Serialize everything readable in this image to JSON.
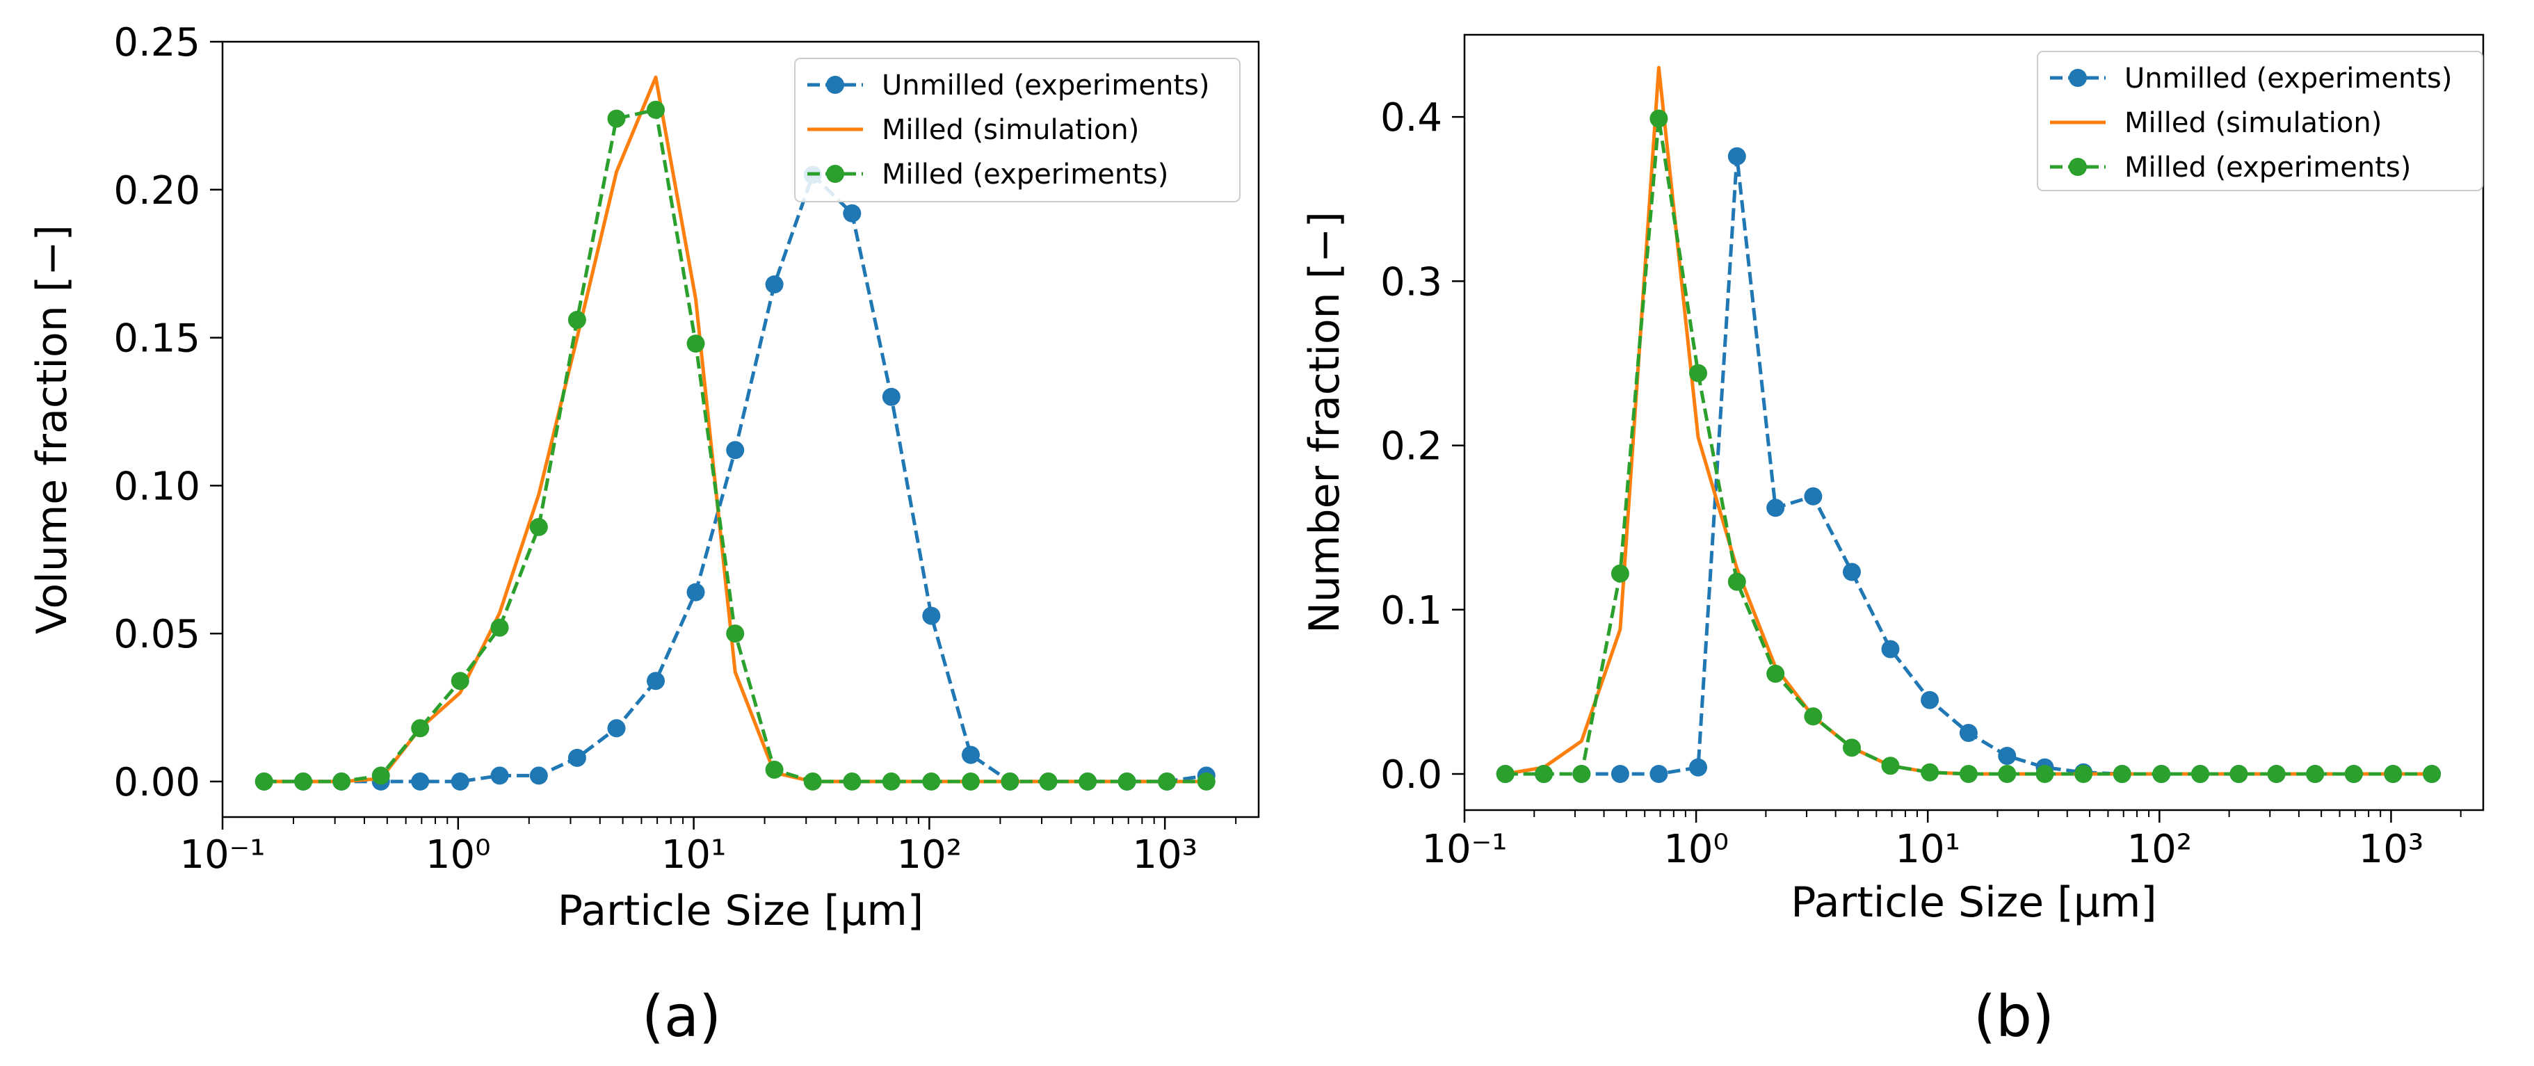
{
  "figure": {
    "panel_labels": [
      "(a)",
      "(b)"
    ]
  },
  "chart_data": [
    {
      "type": "line",
      "panel": "(a)",
      "xlabel": "Particle Size [μm]",
      "ylabel": "Volume fraction [−]",
      "xscale": "log",
      "xlim": [
        0.1,
        2500
      ],
      "ylim": [
        -0.012,
        0.25
      ],
      "xticks": [
        0.1,
        1,
        10,
        100,
        1000
      ],
      "xtick_labels": [
        "10⁻¹",
        "10⁰",
        "10¹",
        "10²",
        "10³"
      ],
      "yticks": [
        0.0,
        0.05,
        0.1,
        0.15,
        0.2,
        0.25
      ],
      "ytick_labels": [
        "0.00",
        "0.05",
        "0.10",
        "0.15",
        "0.20",
        "0.25"
      ],
      "legend_position": "top-right",
      "grid": false,
      "series": [
        {
          "name": "Unmilled (experiments)",
          "style": "dashed-markers",
          "color": "#1f77b4",
          "x": [
            0.15,
            0.22,
            0.32,
            0.47,
            0.69,
            1.02,
            1.5,
            2.2,
            3.2,
            4.7,
            6.9,
            10.2,
            15,
            22,
            32,
            47,
            69,
            102,
            150,
            220,
            320,
            470,
            690,
            1020,
            1500
          ],
          "y": [
            0.0,
            0.0,
            0.0,
            0.0,
            0.0,
            0.0,
            0.002,
            0.002,
            0.008,
            0.018,
            0.034,
            0.064,
            0.112,
            0.168,
            0.205,
            0.192,
            0.13,
            0.056,
            0.009,
            0.0,
            0.0,
            0.0,
            0.0,
            0.0,
            0.002
          ]
        },
        {
          "name": "Milled (simulation)",
          "style": "solid",
          "color": "#ff7f0e",
          "x": [
            0.15,
            0.22,
            0.32,
            0.47,
            0.69,
            1.02,
            1.5,
            2.2,
            3.2,
            4.7,
            6.9,
            10.2,
            15,
            22,
            32,
            47,
            69,
            102,
            150,
            220,
            320,
            470,
            690,
            1020,
            1500
          ],
          "y": [
            0.0,
            0.0,
            0.0,
            0.001,
            0.018,
            0.03,
            0.057,
            0.097,
            0.15,
            0.206,
            0.238,
            0.163,
            0.037,
            0.003,
            0.0,
            0.0,
            0.0,
            0.0,
            0.0,
            0.0,
            0.0,
            0.0,
            0.0,
            0.0,
            0.0
          ]
        },
        {
          "name": "Milled (experiments)",
          "style": "dashed-markers",
          "color": "#2ca02c",
          "x": [
            0.15,
            0.22,
            0.32,
            0.47,
            0.69,
            1.02,
            1.5,
            2.2,
            3.2,
            4.7,
            6.9,
            10.2,
            15,
            22,
            32,
            47,
            69,
            102,
            150,
            220,
            320,
            470,
            690,
            1020,
            1500
          ],
          "y": [
            0.0,
            0.0,
            0.0,
            0.002,
            0.018,
            0.034,
            0.052,
            0.086,
            0.156,
            0.224,
            0.227,
            0.148,
            0.05,
            0.004,
            0.0,
            0.0,
            0.0,
            0.0,
            0.0,
            0.0,
            0.0,
            0.0,
            0.0,
            0.0,
            0.0
          ]
        }
      ]
    },
    {
      "type": "line",
      "panel": "(b)",
      "xlabel": "Particle Size [μm]",
      "ylabel": "Number fraction [−]",
      "xscale": "log",
      "xlim": [
        0.1,
        2500
      ],
      "ylim": [
        -0.022,
        0.45
      ],
      "xticks": [
        0.1,
        1,
        10,
        100,
        1000
      ],
      "xtick_labels": [
        "10⁻¹",
        "10⁰",
        "10¹",
        "10²",
        "10³"
      ],
      "yticks": [
        0.0,
        0.1,
        0.2,
        0.3,
        0.4
      ],
      "ytick_labels": [
        "0.0",
        "0.1",
        "0.2",
        "0.3",
        "0.4"
      ],
      "legend_position": "top-right",
      "grid": false,
      "series": [
        {
          "name": "Unmilled (experiments)",
          "style": "dashed-markers",
          "color": "#1f77b4",
          "x": [
            0.15,
            0.22,
            0.32,
            0.47,
            0.69,
            1.02,
            1.5,
            2.2,
            3.2,
            4.7,
            6.9,
            10.2,
            15,
            22,
            32,
            47,
            69,
            102,
            150,
            220,
            320,
            470,
            690,
            1020,
            1500
          ],
          "y": [
            0.0,
            0.0,
            0.0,
            0.0,
            0.0,
            0.004,
            0.376,
            0.162,
            0.169,
            0.123,
            0.076,
            0.045,
            0.025,
            0.011,
            0.004,
            0.001,
            0.0,
            0.0,
            0.0,
            0.0,
            0.0,
            0.0,
            0.0,
            0.0,
            0.0
          ]
        },
        {
          "name": "Milled (simulation)",
          "style": "solid",
          "color": "#ff7f0e",
          "x": [
            0.15,
            0.22,
            0.32,
            0.47,
            0.69,
            1.02,
            1.5,
            2.2,
            3.2,
            4.7,
            6.9,
            10.2,
            15,
            22,
            32,
            47,
            69,
            102,
            150,
            220,
            320,
            470,
            690,
            1020,
            1500
          ],
          "y": [
            0.0,
            0.004,
            0.02,
            0.088,
            0.43,
            0.205,
            0.125,
            0.065,
            0.035,
            0.016,
            0.005,
            0.001,
            0.0,
            0.0,
            0.0,
            0.0,
            0.0,
            0.0,
            0.0,
            0.0,
            0.0,
            0.0,
            0.0,
            0.0,
            0.0
          ]
        },
        {
          "name": "Milled (experiments)",
          "style": "dashed-markers",
          "color": "#2ca02c",
          "x": [
            0.15,
            0.22,
            0.32,
            0.47,
            0.69,
            1.02,
            1.5,
            2.2,
            3.2,
            4.7,
            6.9,
            10.2,
            15,
            22,
            32,
            47,
            69,
            102,
            150,
            220,
            320,
            470,
            690,
            1020,
            1500
          ],
          "y": [
            0.0,
            0.0,
            0.0,
            0.122,
            0.399,
            0.244,
            0.117,
            0.061,
            0.035,
            0.016,
            0.005,
            0.001,
            0.0,
            0.0,
            0.0,
            0.0,
            0.0,
            0.0,
            0.0,
            0.0,
            0.0,
            0.0,
            0.0,
            0.0,
            0.0
          ]
        }
      ]
    }
  ]
}
